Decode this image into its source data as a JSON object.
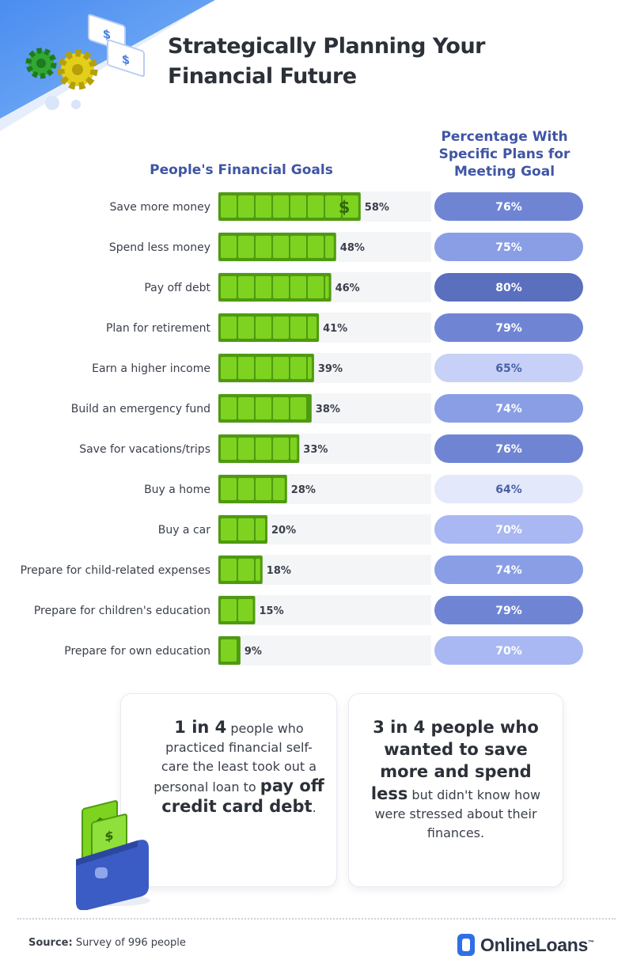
{
  "title_line1": "Strategically Planning Your",
  "title_line2": "Financial Future",
  "left_header": "People's Financial Goals",
  "right_header_lines": [
    "Percentage With",
    "Specific Plans for",
    "Meeting Goal"
  ],
  "chart_data": {
    "type": "bar",
    "categories": [
      "Save more money",
      "Spend less money",
      "Pay off debt",
      "Plan for retirement",
      "Earn a higher income",
      "Build an emergency fund",
      "Save for vacations/trips",
      "Buy a home",
      "Buy a car",
      "Prepare for child-related expenses",
      "Prepare for children's education",
      "Prepare for own education"
    ],
    "goal_values": [
      58,
      48,
      46,
      41,
      39,
      38,
      33,
      28,
      20,
      18,
      15,
      9
    ],
    "goal_labels": [
      "58%",
      "48%",
      "46%",
      "41%",
      "39%",
      "38%",
      "33%",
      "28%",
      "20%",
      "18%",
      "15%",
      "9%"
    ],
    "plan_values": [
      76,
      75,
      80,
      79,
      65,
      74,
      76,
      64,
      70,
      74,
      79,
      70
    ],
    "plan_labels": [
      "76%",
      "75%",
      "80%",
      "79%",
      "65%",
      "74%",
      "76%",
      "64%",
      "70%",
      "74%",
      "79%",
      "70%"
    ],
    "unit": "%",
    "colors": {
      "bar_fill": "#7ed321",
      "bar_dark": "#4f9a10",
      "track": "#f4f5f7",
      "pill_scale": [
        "#e3e8fb",
        "#c7d1f7",
        "#a9b8f2",
        "#8a9ee6",
        "#6f85d4",
        "#5a6fbe"
      ]
    }
  },
  "card1": {
    "big1": "1 in 4",
    "text1": " people who practiced financial self-care the least took out a personal loan to ",
    "big2": "pay off credit card debt",
    "text2": "."
  },
  "card2": {
    "big1": "3 in 4 people who wanted to save more and spend less",
    "text1": " but didn't know how were stressed about their finances."
  },
  "footer": {
    "source_label": "Source:",
    "source_text": " Survey of 996 people",
    "brand": "OnlineLoans",
    "brand_tm": "™"
  },
  "icons": [
    "gear-icon",
    "dollar-bill-icon",
    "wallet-icon",
    "onlineloans-logo-icon"
  ]
}
